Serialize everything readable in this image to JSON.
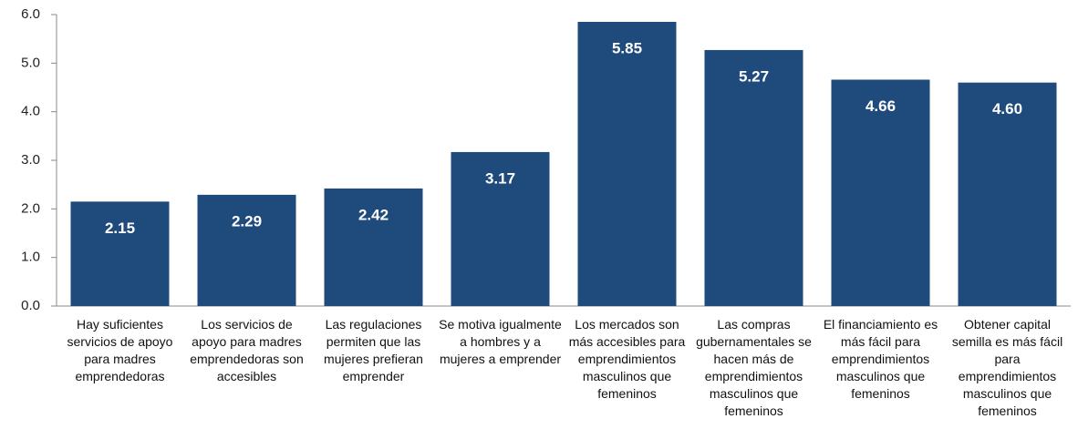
{
  "chart_data": {
    "type": "bar",
    "categories": [
      "Hay suficientes servicios de apoyo para madres emprendedoras",
      "Los servicios de apoyo para madres emprendedoras son accesibles",
      "Las regulaciones permiten que las mujeres prefieran emprender",
      "Se motiva igualmente a hombres y a mujeres a emprender",
      "Los mercados son más accesibles para emprendimientos masculinos que femeninos",
      "Las compras gubernamentales se hacen más de emprendimientos masculinos que femeninos",
      "El financiamiento es más fácil para emprendimientos masculinos que femeninos",
      "Obtener capital semilla es más fácil para emprendimientos masculinos que femeninos"
    ],
    "values": [
      2.15,
      2.29,
      2.42,
      3.17,
      5.85,
      5.27,
      4.66,
      4.6
    ],
    "value_labels": [
      "2.15",
      "2.29",
      "2.42",
      "3.17",
      "5.85",
      "5.27",
      "4.66",
      "4.60"
    ],
    "color": "#1f4a7c",
    "ylim": [
      0,
      6
    ],
    "yticks": [
      {
        "value": 0,
        "label": "0.0"
      },
      {
        "value": 1,
        "label": "1.0"
      },
      {
        "value": 2,
        "label": "2.0"
      },
      {
        "value": 3,
        "label": "3.0"
      },
      {
        "value": 4,
        "label": "4.0"
      },
      {
        "value": 5,
        "label": "5.0"
      },
      {
        "value": 6,
        "label": "6.0"
      }
    ],
    "grid": false
  }
}
